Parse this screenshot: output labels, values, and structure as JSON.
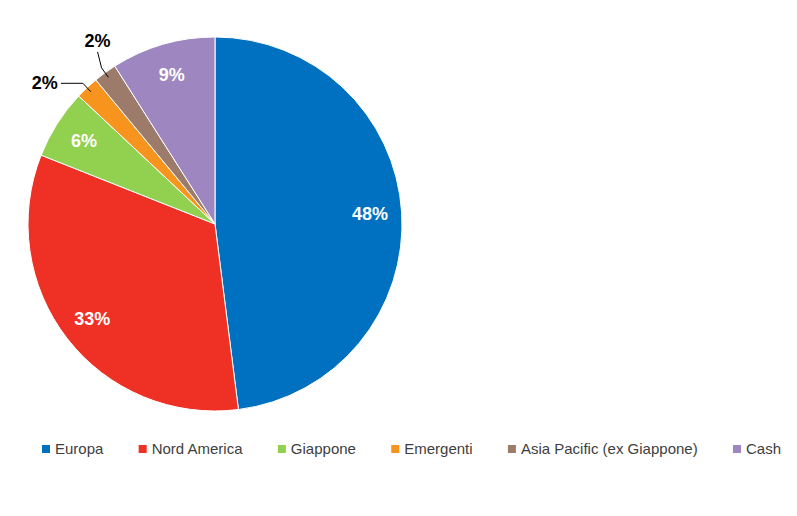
{
  "chart_data": {
    "type": "pie",
    "categories": [
      "Europa",
      "Nord America",
      "Giappone",
      "Emergenti",
      "Asia Pacific (ex Giappone)",
      "Cash"
    ],
    "values": [
      48,
      33,
      6,
      2,
      2,
      9
    ],
    "value_labels": [
      "48%",
      "33%",
      "6%",
      "2%",
      "2%",
      "9%"
    ],
    "colors": [
      "#0070c0",
      "#ee3124",
      "#92d050",
      "#f7941d",
      "#9c7b6b",
      "#9e86c0"
    ],
    "data_labels": true,
    "legend": "bottom"
  }
}
